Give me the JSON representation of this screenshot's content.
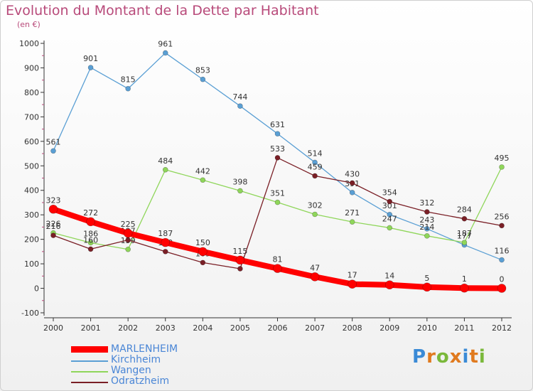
{
  "header": {
    "title": "Evolution du Montant de la Dette par Habitant",
    "unit": "(en €)"
  },
  "logo": {
    "text": "Proxiti"
  },
  "colors": {
    "MARLENHEIM": "#ff0000",
    "Kirchheim": "#5a9fd4",
    "Wangen": "#8fd65a",
    "Odratzheim": "#7a1f26"
  },
  "chart_data": {
    "type": "line",
    "title": "Evolution du Montant de la Dette par Habitant",
    "subtitle": "(en €)",
    "x": [
      "2000",
      "2001",
      "2002",
      "2003",
      "2004",
      "2005",
      "2006",
      "2007",
      "2008",
      "2009",
      "2010",
      "2011",
      "2012"
    ],
    "ylim": [
      -100,
      1000
    ],
    "yticks": [
      -100,
      0,
      100,
      200,
      300,
      400,
      500,
      600,
      700,
      800,
      900,
      1000
    ],
    "grid": false,
    "legend": "bottom-left",
    "series": [
      {
        "name": "MARLENHEIM",
        "values": [
          323,
          272,
          225,
          187,
          150,
          115,
          81,
          47,
          17,
          14,
          5,
          1,
          0
        ]
      },
      {
        "name": "Kirchheim",
        "values": [
          561,
          901,
          815,
          961,
          853,
          744,
          631,
          514,
          391,
          301,
          243,
          177,
          116
        ]
      },
      {
        "name": "Wangen",
        "values": [
          226,
          186,
          159,
          484,
          442,
          398,
          351,
          302,
          271,
          247,
          214,
          187,
          495
        ]
      },
      {
        "name": "Odratzheim",
        "values": [
          216,
          160,
          197,
          150,
          105,
          80,
          533,
          459,
          430,
          354,
          312,
          284,
          256
        ]
      }
    ]
  }
}
